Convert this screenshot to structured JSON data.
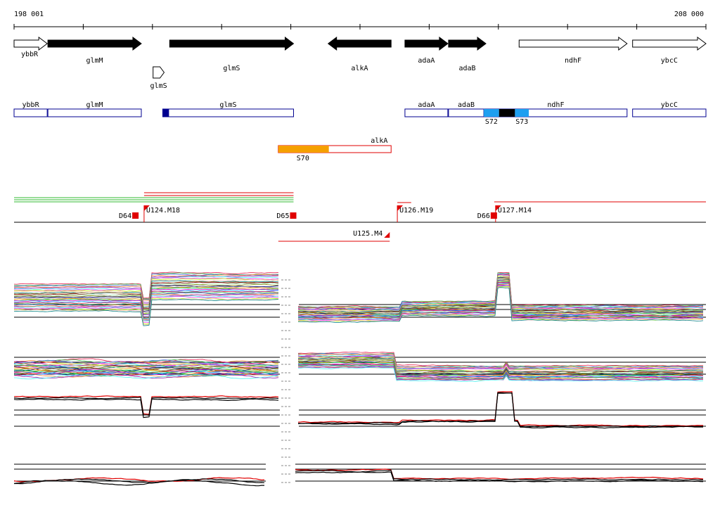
{
  "ruler": {
    "start_label": "198 001",
    "end_label": "208 000",
    "start": 198001,
    "end": 208000
  },
  "annotation_genes": [
    {
      "name": "ybbR",
      "start": 198001,
      "end": 198480,
      "strand": "+",
      "fill": "white"
    },
    {
      "name": "glmM",
      "start": 198490,
      "end": 199840,
      "strand": "+",
      "fill": "black"
    },
    {
      "name": "glmS",
      "start": 200250,
      "end": 202040,
      "strand": "+",
      "fill": "black"
    },
    {
      "name": "alkA",
      "start": 202540,
      "end": 203450,
      "strand": "-",
      "fill": "black"
    },
    {
      "name": "adaA",
      "start": 203650,
      "end": 204270,
      "strand": "+",
      "fill": "black"
    },
    {
      "name": "adaB",
      "start": 204280,
      "end": 204820,
      "strand": "+",
      "fill": "black"
    },
    {
      "name": "ndhF",
      "start": 205300,
      "end": 206860,
      "strand": "+",
      "fill": "white"
    },
    {
      "name": "ybcC",
      "start": 206940,
      "end": 208000,
      "strand": "+",
      "fill": "white"
    }
  ],
  "small_feature": {
    "name": "glmS",
    "start": 200010,
    "end": 200170
  },
  "transcription_units_plus": [
    {
      "name": "ybbR",
      "start": 198001,
      "end": 198480
    },
    {
      "name": "glmM",
      "start": 198490,
      "end": 199840
    },
    {
      "name": "glmS",
      "start": 200150,
      "end": 202040
    },
    {
      "name": "adaA",
      "start": 203650,
      "end": 204270
    },
    {
      "name": "adaB",
      "start": 204280,
      "end": 204790
    },
    {
      "name": "ndhF",
      "start": 204800,
      "end": 206860
    },
    {
      "name": "ybcC",
      "start": 206940,
      "end": 208000
    }
  ],
  "segments_plus": [
    {
      "name": "S72",
      "start": 204790,
      "end": 205010,
      "color": "#1e9ff0"
    },
    {
      "name": "",
      "start": 205010,
      "end": 205240,
      "color": "#000000"
    },
    {
      "name": "S73",
      "start": 205240,
      "end": 205440,
      "color": "#1e9ff0"
    },
    {
      "name": "",
      "start": 200150,
      "end": 200240,
      "color": "#000090"
    }
  ],
  "transcription_units_minus": [
    {
      "name": "alkA",
      "start": 202700,
      "end": 203450
    }
  ],
  "segments_minus": [
    {
      "name": "S70",
      "start": 201820,
      "end": 202550,
      "color": "#f5a000"
    }
  ],
  "breakpoints": [
    {
      "name": "D64",
      "kind": "down",
      "pos": 199760
    },
    {
      "name": "U124.M18",
      "kind": "up",
      "pos": 199880
    },
    {
      "name": "D65",
      "kind": "down",
      "pos": 202040
    },
    {
      "name": "U126.M19",
      "kind": "up",
      "pos": 203540
    },
    {
      "name": "D66",
      "kind": "down",
      "pos": 204940
    },
    {
      "name": "U127.M14",
      "kind": "up",
      "pos": 204960
    },
    {
      "name": "U125.M4",
      "kind": "up-minus",
      "pos": 203430
    }
  ],
  "colors": {
    "ruler": "#000000",
    "transcription_unit_border": "#000090",
    "minus_unit_border": "#e00000",
    "breakpoint": "#e00000",
    "condition_line": "#e00000",
    "condition_green": "#33bb33",
    "average_plus": "#e00000",
    "average_black": "#000000"
  }
}
